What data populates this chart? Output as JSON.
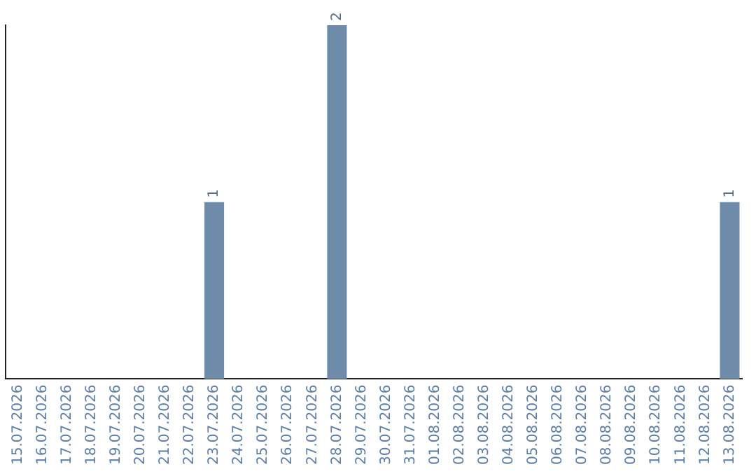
{
  "chart_data": {
    "type": "bar",
    "categories": [
      "15.07.2026",
      "16.07.2026",
      "17.07.2026",
      "18.07.2026",
      "19.07.2026",
      "20.07.2026",
      "21.07.2026",
      "22.07.2026",
      "23.07.2026",
      "24.07.2026",
      "25.07.2026",
      "26.07.2026",
      "27.07.2026",
      "28.07.2026",
      "29.07.2026",
      "30.07.2026",
      "31.07.2026",
      "01.08.2026",
      "02.08.2026",
      "03.08.2026",
      "04.08.2026",
      "05.08.2026",
      "06.08.2026",
      "07.08.2026",
      "08.08.2026",
      "09.08.2026",
      "10.08.2026",
      "11.08.2026",
      "12.08.2026",
      "13.08.2026"
    ],
    "values": [
      0,
      0,
      0,
      0,
      0,
      0,
      0,
      0,
      1,
      0,
      0,
      0,
      0,
      2,
      0,
      0,
      0,
      0,
      0,
      0,
      0,
      0,
      0,
      0,
      0,
      0,
      0,
      0,
      0,
      1
    ],
    "value_labels": [
      null,
      null,
      null,
      null,
      null,
      null,
      null,
      null,
      "1",
      null,
      null,
      null,
      null,
      "2",
      null,
      null,
      null,
      null,
      null,
      null,
      null,
      null,
      null,
      null,
      null,
      null,
      null,
      null,
      null,
      "1"
    ],
    "color": "#6e8caa",
    "grid": false,
    "legend": false
  }
}
